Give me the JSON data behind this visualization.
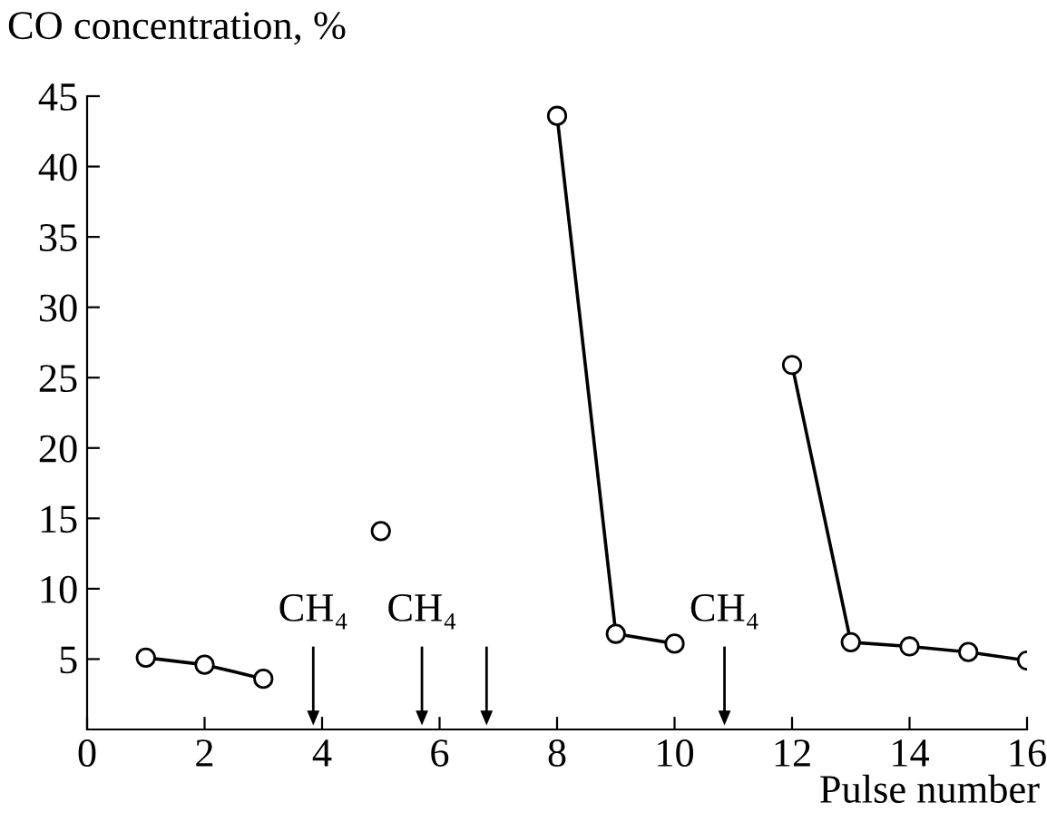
{
  "chart_data": {
    "type": "line",
    "xlabel": "Pulse number",
    "ylabel": "CO concentration, %",
    "x": [
      1,
      2,
      3,
      4,
      5,
      6,
      7,
      8,
      9,
      10,
      11,
      12,
      13,
      14,
      15,
      16
    ],
    "series": [
      {
        "color": "#000000",
        "values": [
          5.1,
          4.6,
          3.6,
          null,
          14.1,
          null,
          null,
          43.6,
          6.8,
          6.1,
          null,
          25.9,
          6.2,
          5.9,
          5.5,
          4.9
        ]
      }
    ],
    "xlim": [
      0,
      16
    ],
    "xticks": [
      0,
      2,
      4,
      6,
      8,
      10,
      12,
      14,
      16
    ],
    "ylim": [
      0,
      45
    ],
    "yticks": [
      5,
      10,
      15,
      20,
      25,
      30,
      35,
      40,
      45
    ],
    "marker": "circle",
    "line_style": "solid",
    "grid": false,
    "legend": false,
    "ref_lines": [
      {
        "axis": "x",
        "value": 3.85,
        "label": "CH₄"
      },
      {
        "axis": "x",
        "value": 5.7,
        "label": "CH₄"
      },
      {
        "axis": "x",
        "value": 6.8
      },
      {
        "axis": "x",
        "value": 10.85,
        "label": "CH₄"
      }
    ]
  }
}
